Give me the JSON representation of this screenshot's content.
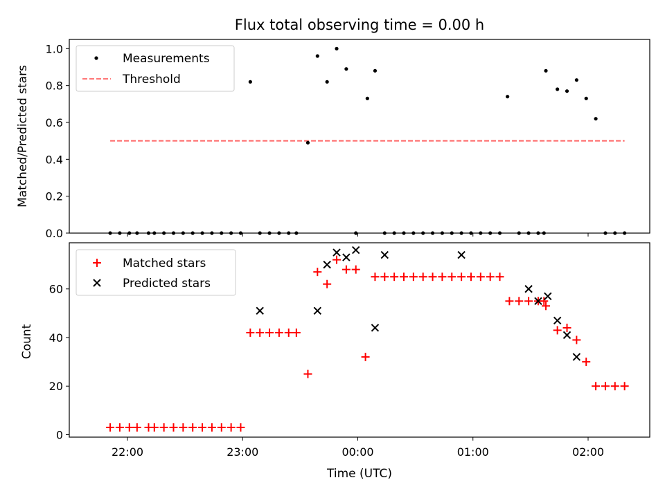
{
  "chart_data": [
    {
      "type": "scatter",
      "title": "Flux total observing time = 0.00 h",
      "xlabel": "",
      "ylabel": "Matched/Predicted stars",
      "ylim": [
        0,
        1.05
      ],
      "yticks": [
        "0.0",
        "0.2",
        "0.4",
        "0.6",
        "0.8",
        "1.0"
      ],
      "legend_position": "upper-left",
      "series": [
        {
          "name": "Measurements",
          "marker": "dot",
          "color": "#000000",
          "x": [
            "21:51",
            "21:56",
            "22:01",
            "22:05",
            "22:11",
            "22:14",
            "22:19",
            "22:24",
            "22:29",
            "22:34",
            "22:39",
            "22:44",
            "22:49",
            "22:54",
            "22:59",
            "23:04",
            "23:09",
            "23:14",
            "23:19",
            "23:24",
            "23:28",
            "23:34",
            "23:39",
            "23:44",
            "23:49",
            "23:54",
            "23:59",
            "00:05",
            "00:09",
            "00:14",
            "00:19",
            "00:24",
            "00:29",
            "00:34",
            "00:39",
            "00:44",
            "00:49",
            "00:54",
            "00:59",
            "01:04",
            "01:09",
            "01:14",
            "01:18",
            "01:24",
            "01:29",
            "01:34",
            "01:37",
            "01:38",
            "01:44",
            "01:49",
            "01:54",
            "01:59",
            "02:04",
            "02:09",
            "02:14",
            "02:19"
          ],
          "y": [
            0,
            0,
            0,
            0,
            0,
            0,
            0,
            0,
            0,
            0,
            0,
            0,
            0,
            0,
            0,
            0.82,
            0,
            0,
            0,
            0,
            0,
            0.49,
            0.96,
            0.82,
            1.0,
            0.89,
            0,
            0.73,
            0.88,
            0,
            0,
            0,
            0,
            0,
            0,
            0,
            0,
            0,
            0,
            0,
            0,
            0,
            0.74,
            0,
            0,
            0,
            0,
            0.88,
            0.78,
            0.77,
            0.83,
            0.73,
            0.62,
            0,
            0,
            0
          ],
          "x_override_note": ""
        },
        {
          "name": "Threshold",
          "type": "line",
          "style": "dashed",
          "color": "#ff6666",
          "x": [
            "21:51",
            "02:19"
          ],
          "y": [
            0.5,
            0.5
          ]
        }
      ]
    },
    {
      "type": "scatter",
      "title": "",
      "xlabel": "Time (UTC)",
      "ylabel": "Count",
      "ylim": [
        -1,
        79
      ],
      "yticks": [
        "0",
        "20",
        "40",
        "60"
      ],
      "xticks": [
        "22:00",
        "23:00",
        "00:00",
        "01:00",
        "02:00"
      ],
      "legend_position": "upper-left",
      "series": [
        {
          "name": "Matched stars",
          "marker": "plus",
          "color": "#ff0000",
          "x": [
            "21:51",
            "21:56",
            "22:01",
            "22:05",
            "22:11",
            "22:14",
            "22:19",
            "22:24",
            "22:29",
            "22:34",
            "22:39",
            "22:44",
            "22:49",
            "22:54",
            "22:59",
            "23:04",
            "23:09",
            "23:14",
            "23:19",
            "23:24",
            "23:28",
            "23:34",
            "23:39",
            "23:44",
            "23:49",
            "23:54",
            "23:59",
            "00:04",
            "00:09",
            "00:14",
            "00:19",
            "00:24",
            "00:29",
            "00:34",
            "00:39",
            "00:44",
            "00:49",
            "00:54",
            "00:59",
            "01:04",
            "01:09",
            "01:14",
            "01:19",
            "01:24",
            "01:29",
            "01:34",
            "01:37",
            "01:38",
            "01:44",
            "01:49",
            "01:54",
            "01:59",
            "02:04",
            "02:09",
            "02:14",
            "02:19"
          ],
          "y": [
            3,
            3,
            3,
            3,
            3,
            3,
            3,
            3,
            3,
            3,
            3,
            3,
            3,
            3,
            3,
            42,
            42,
            42,
            42,
            42,
            42,
            25,
            67,
            62,
            72,
            68,
            68,
            32,
            65,
            65,
            65,
            65,
            65,
            65,
            65,
            65,
            65,
            65,
            65,
            65,
            65,
            65,
            55,
            55,
            55,
            55,
            55,
            53,
            43,
            44,
            39,
            30,
            20,
            20,
            20,
            20
          ]
        },
        {
          "name": "Predicted stars",
          "marker": "x",
          "color": "#000000",
          "x": [
            "23:09",
            "23:39",
            "23:44",
            "23:49",
            "23:54",
            "23:59",
            "00:09",
            "00:14",
            "00:54",
            "01:29",
            "01:34",
            "01:39",
            "01:44",
            "01:49",
            "01:54"
          ],
          "y": [
            51,
            51,
            70,
            75,
            73,
            76,
            44,
            74,
            74,
            60,
            55,
            57,
            47,
            41,
            32
          ]
        }
      ]
    }
  ]
}
